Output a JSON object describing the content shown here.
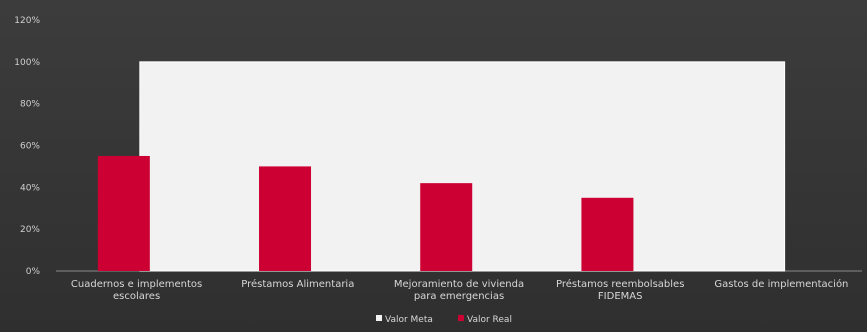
{
  "chart_data": {
    "type": "bar",
    "title": "",
    "xlabel": "",
    "ylabel": "",
    "ylim": [
      0,
      120
    ],
    "yticks": [
      "0%",
      "20%",
      "40%",
      "60%",
      "80%",
      "100%",
      "120%"
    ],
    "ytick_values": [
      0,
      20,
      40,
      60,
      80,
      100,
      120
    ],
    "categories": [
      [
        "Cuadernos e implementos",
        "escolares"
      ],
      [
        "Préstamos Alimentaria"
      ],
      [
        "Mejoramiento de vivienda",
        "para emergencias"
      ],
      [
        "Préstamos reembolsables",
        "FIDEMAS"
      ],
      [
        "Gastos de implementación"
      ]
    ],
    "series": [
      {
        "name": "Valor Meta",
        "color": "#f2f2f2",
        "values": [
          100,
          100,
          100,
          100,
          100
        ]
      },
      {
        "name": "Valor Real",
        "color": "#cc0033",
        "values": [
          55,
          50,
          42,
          35,
          0
        ]
      }
    ],
    "grid": false,
    "legend_position": "bottom"
  }
}
